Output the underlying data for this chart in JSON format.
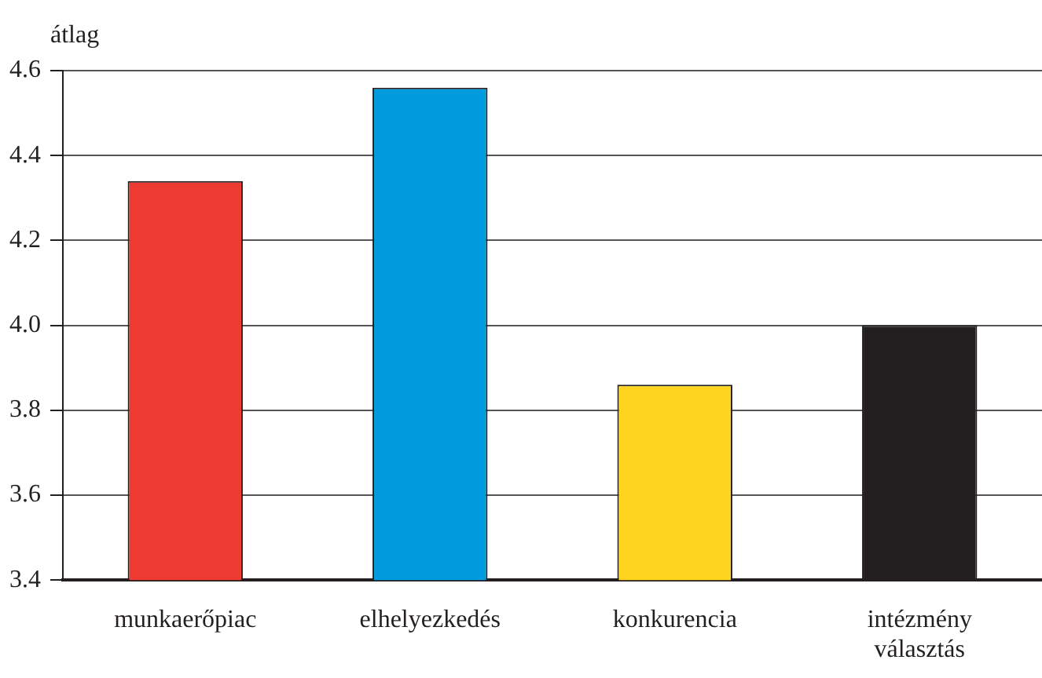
{
  "chart_data": {
    "type": "bar",
    "ylabel": "átlag",
    "categories": [
      "munkaerőpiac",
      "elhelyezkedés",
      "konkurencia",
      "intézmény\nválasztás"
    ],
    "values": [
      4.34,
      4.56,
      3.86,
      4.0
    ],
    "colors": [
      "#ee3b32",
      "#009bdc",
      "#ffd41e",
      "#231f20"
    ],
    "ylim": [
      3.4,
      4.6
    ],
    "yticks": [
      3.4,
      3.6,
      3.8,
      {
        "value": 4,
        "label": "4.0"
      },
      4.2,
      4.4,
      4.6
    ],
    "grid": "y"
  }
}
